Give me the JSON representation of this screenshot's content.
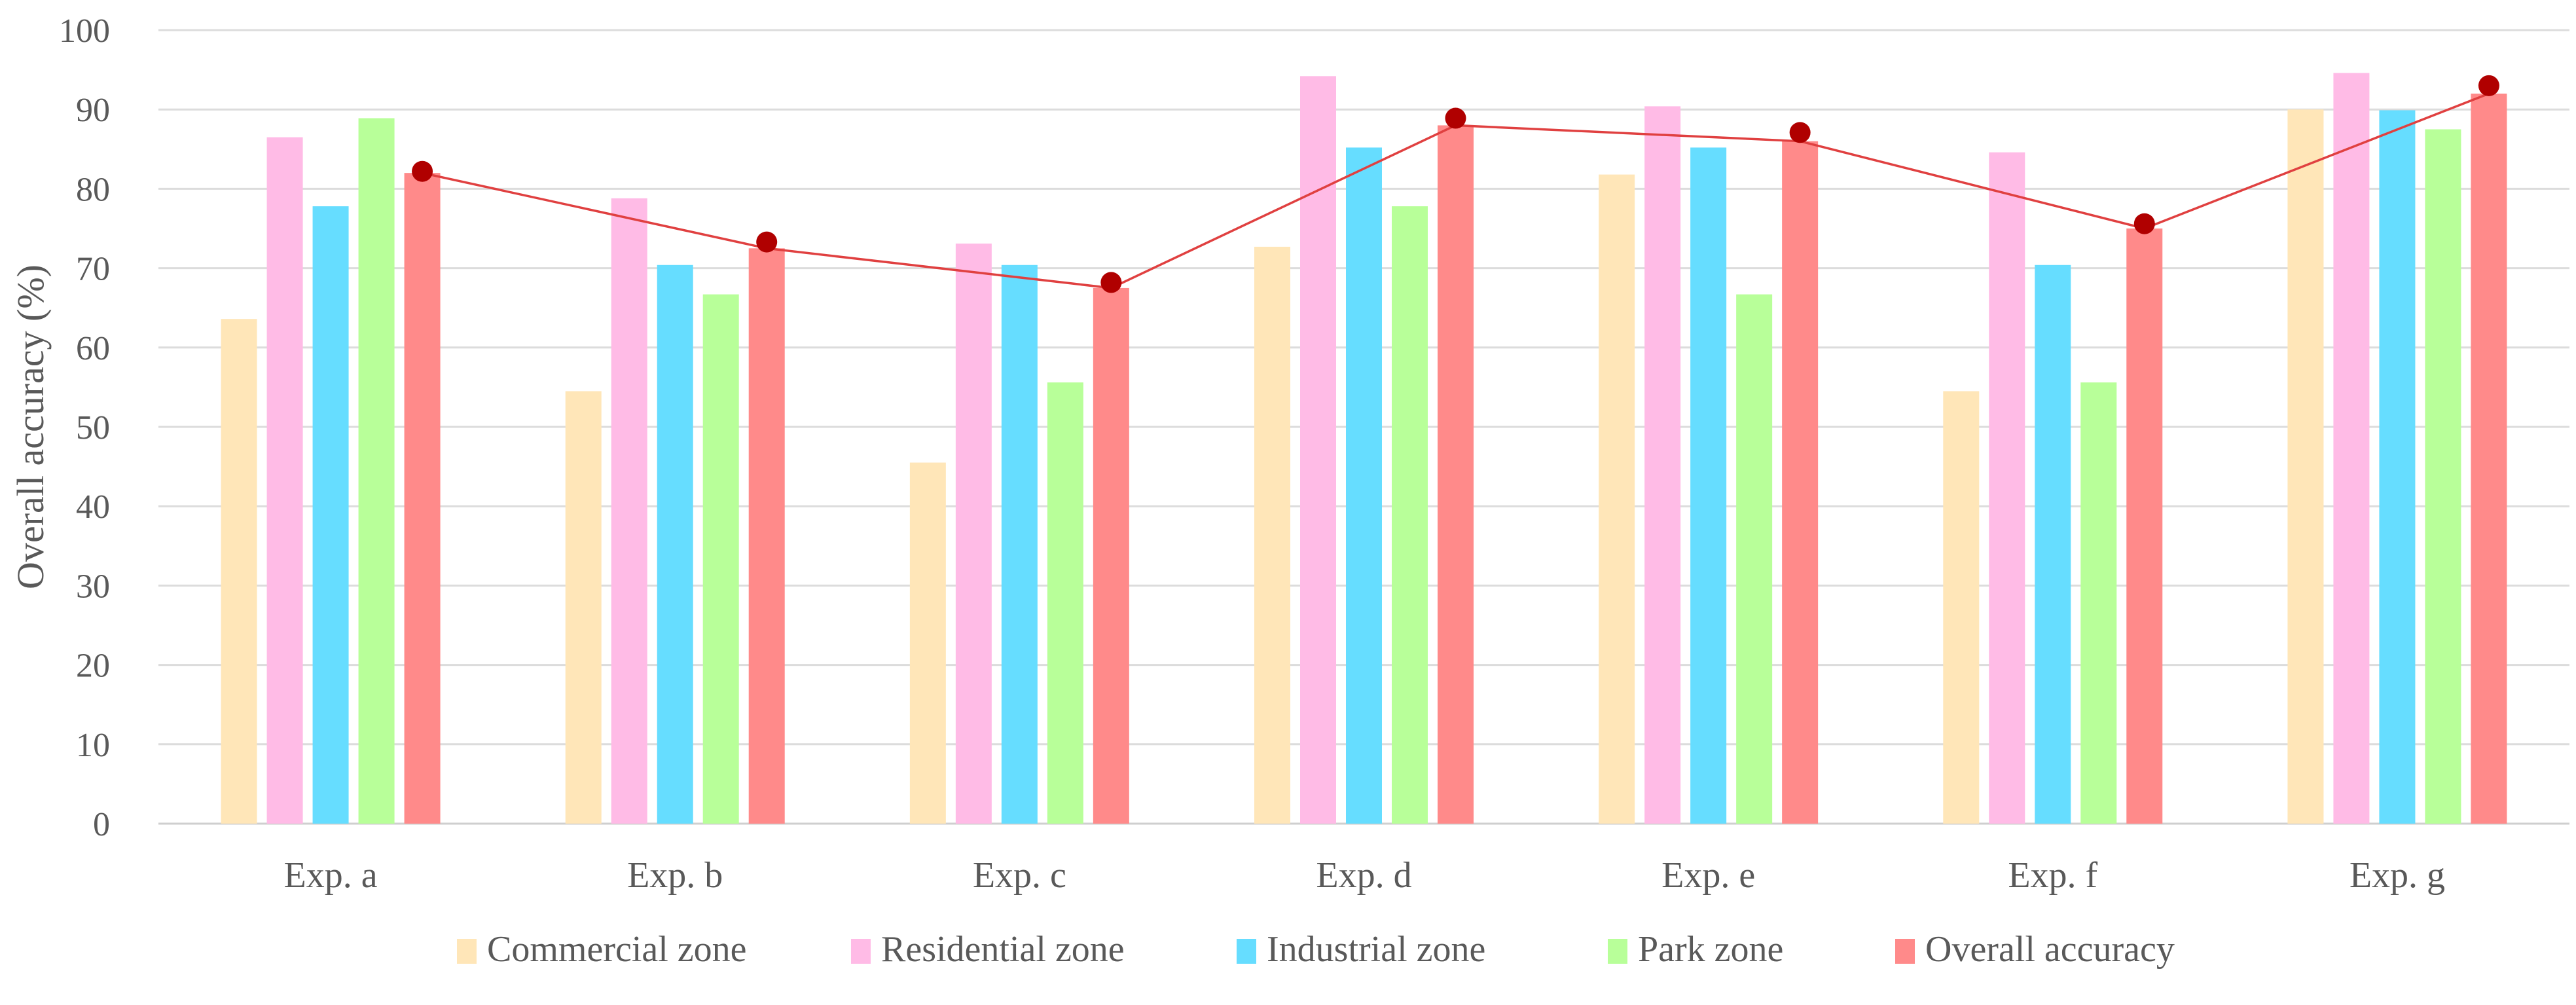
{
  "chart_data": {
    "type": "bar",
    "title": "",
    "xlabel": "",
    "ylabel": "Overall accuracy (%)",
    "ylim": [
      0,
      100
    ],
    "yticks": [
      0,
      10,
      20,
      30,
      40,
      50,
      60,
      70,
      80,
      90,
      100
    ],
    "grid": true,
    "legend_position": "bottom",
    "categories": [
      "Exp. a",
      "Exp. b",
      "Exp. c",
      "Exp. d",
      "Exp. e",
      "Exp. f",
      "Exp. g"
    ],
    "series": [
      {
        "name": "Commercial zone",
        "color": "#FFE6B8",
        "values": [
          63.6,
          54.5,
          45.5,
          72.7,
          81.8,
          54.5,
          90.0
        ]
      },
      {
        "name": "Residential zone",
        "color": "#FFBBE6",
        "values": [
          86.5,
          78.8,
          73.1,
          94.2,
          90.4,
          84.6,
          94.6
        ]
      },
      {
        "name": "Industrial zone",
        "color": "#66DDFF",
        "values": [
          77.8,
          70.4,
          70.4,
          85.2,
          85.2,
          70.4,
          89.9
        ]
      },
      {
        "name": "Park zone",
        "color": "#B8FF99",
        "values": [
          88.9,
          66.7,
          55.6,
          77.8,
          66.7,
          55.6,
          87.5
        ]
      },
      {
        "name": "Overall accuracy",
        "color": "#FF8A8A",
        "values": [
          82.0,
          72.5,
          67.5,
          88.0,
          86.0,
          75.0,
          92.0
        ]
      }
    ],
    "line_series": {
      "name": "Overall accuracy",
      "line_color": "#E04040",
      "marker_color": "#B00000",
      "values": [
        82.0,
        72.5,
        67.5,
        88.0,
        86.0,
        75.0,
        92.0
      ],
      "marker_values": [
        82.2,
        73.3,
        68.2,
        88.9,
        87.1,
        75.6,
        93.0
      ]
    }
  }
}
